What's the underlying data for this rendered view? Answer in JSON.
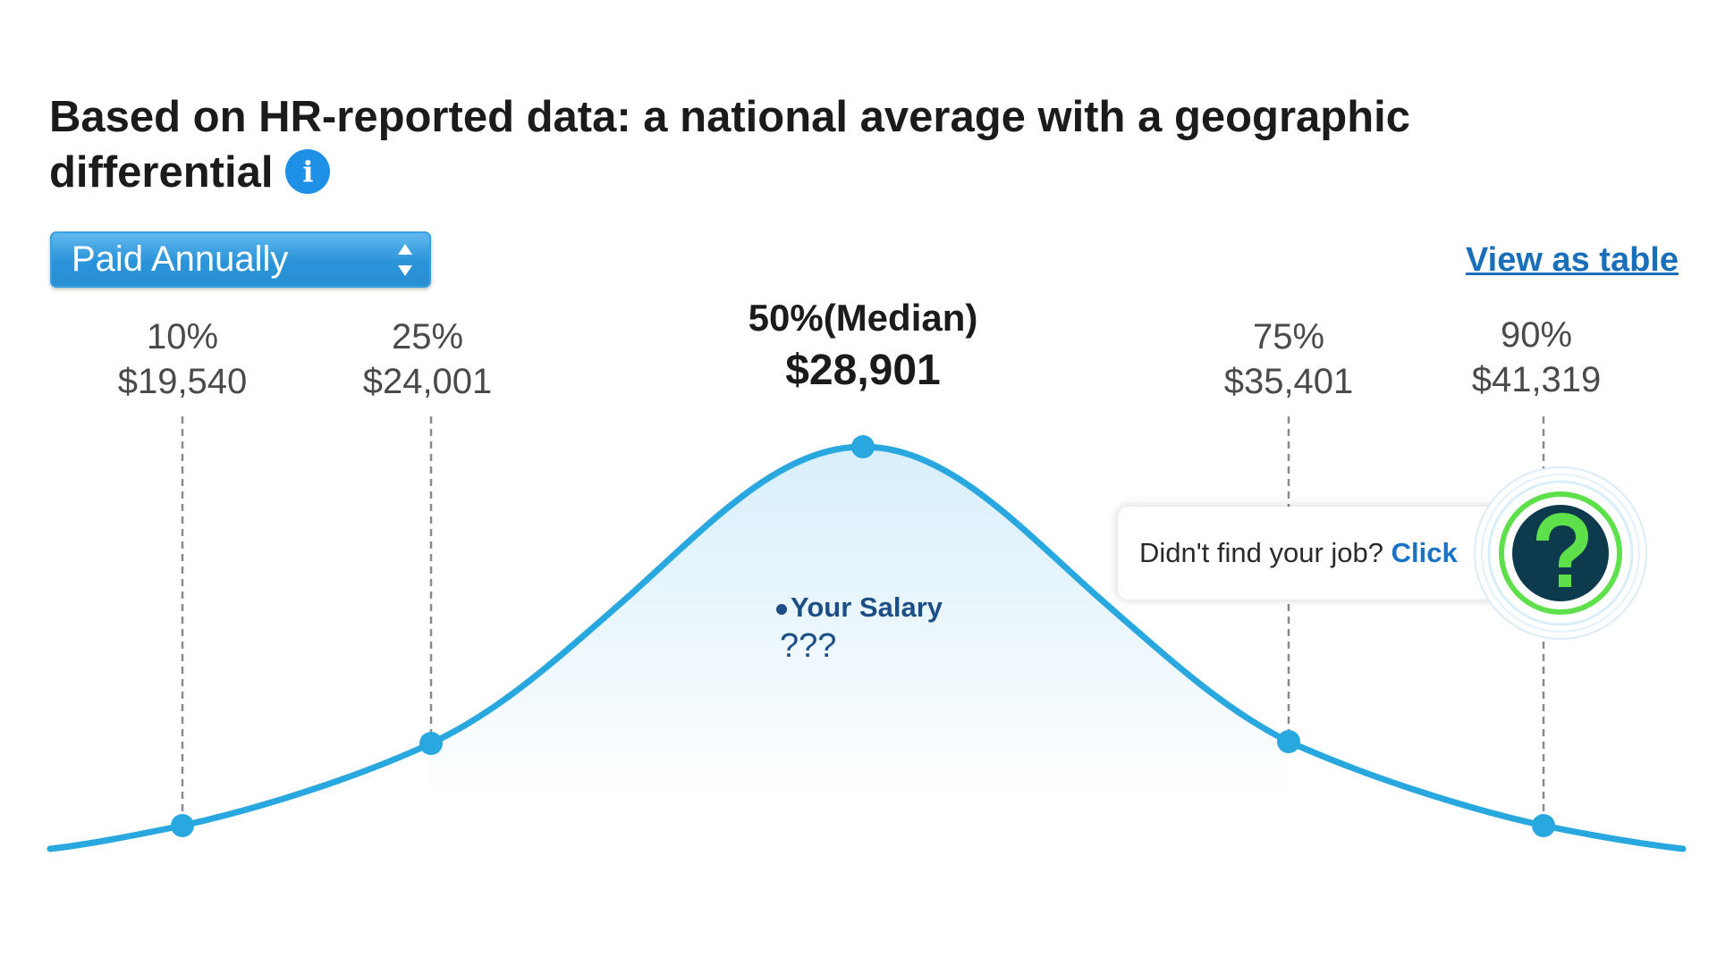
{
  "header": {
    "title": "Based on HR-reported data: a national average with a geographic differential",
    "info_icon": "info-icon"
  },
  "controls": {
    "pay_period_selected": "Paid Annually",
    "view_as_table": "View as table"
  },
  "percentiles": [
    {
      "label": "10%",
      "value": "$19,540"
    },
    {
      "label": "25%",
      "value": "$24,001"
    },
    {
      "label": "50%(Median)",
      "value": "$28,901"
    },
    {
      "label": "75%",
      "value": "$35,401"
    },
    {
      "label": "90%",
      "value": "$41,319"
    }
  ],
  "your_salary": {
    "label": "Your Salary",
    "value": "???"
  },
  "job_prompt": {
    "text": "Didn't find your job?",
    "link": "Click",
    "icon": "question-icon"
  },
  "colors": {
    "curve": "#29a8e0",
    "accent_blue": "#1e90e6",
    "link_blue": "#1a6fba",
    "help_ring_green": "#5ee04a",
    "help_bg_dark": "#0d3a4d"
  }
}
